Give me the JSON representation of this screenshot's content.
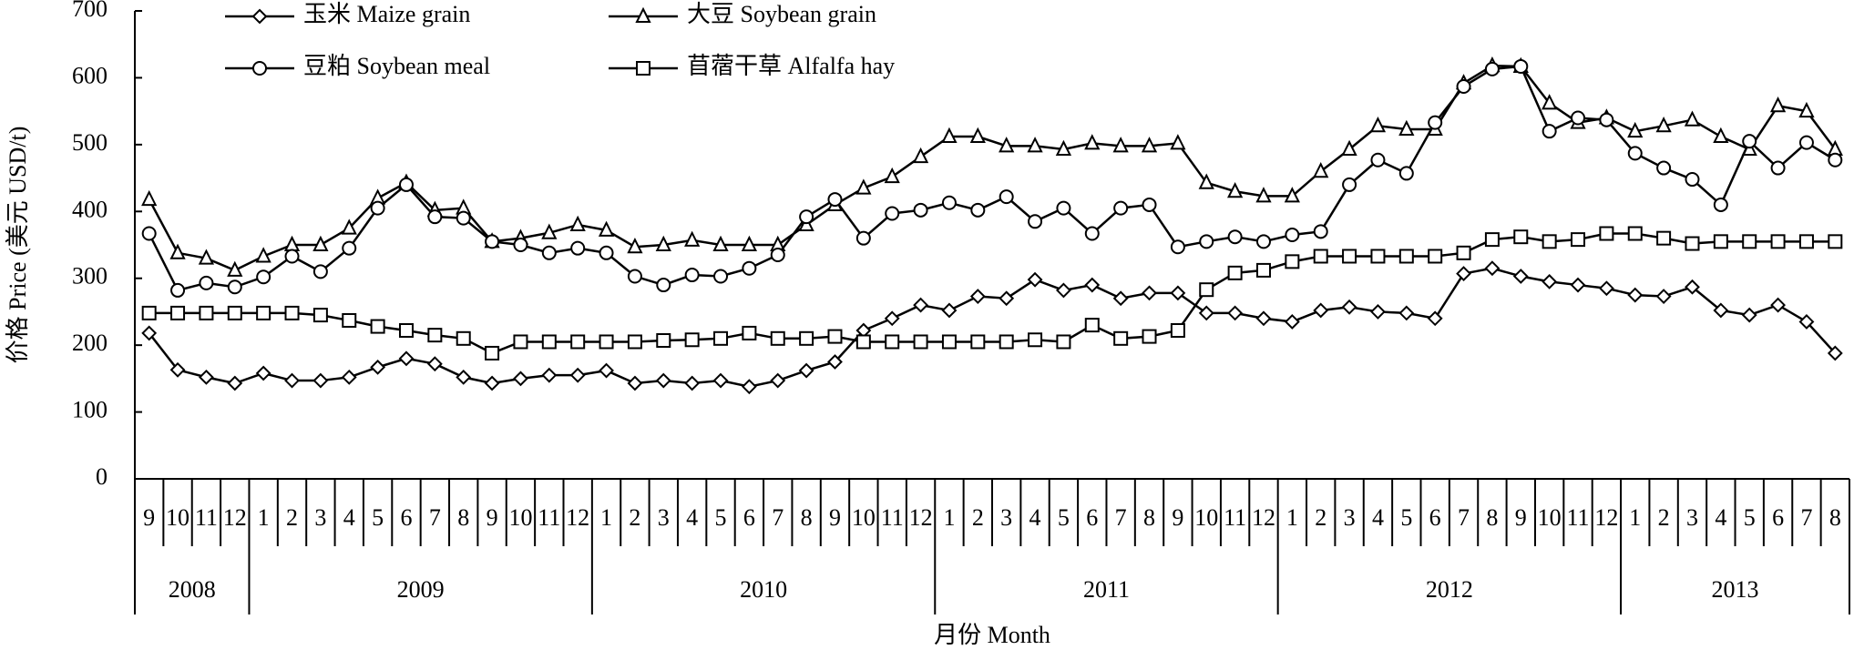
{
  "chart_data": {
    "type": "line",
    "y_label": "价格 Price (美元 USD/t)",
    "x_label": "月份 Month",
    "categories": [
      "9",
      "10",
      "11",
      "12",
      "1",
      "2",
      "3",
      "4",
      "5",
      "6",
      "7",
      "8",
      "9",
      "10",
      "11",
      "12",
      "1",
      "2",
      "3",
      "4",
      "5",
      "6",
      "7",
      "8",
      "9",
      "10",
      "11",
      "12",
      "1",
      "2",
      "3",
      "4",
      "5",
      "6",
      "7",
      "8",
      "9",
      "10",
      "11",
      "12",
      "1",
      "2",
      "3",
      "4",
      "5",
      "6",
      "7",
      "8",
      "9",
      "10",
      "11",
      "12",
      "1",
      "2",
      "3",
      "4",
      "5",
      "6",
      "7",
      "8"
    ],
    "years": [
      "2008",
      "2009",
      "2010",
      "2011",
      "2012",
      "2013"
    ],
    "ylim": [
      0,
      700
    ],
    "yticks": [
      0,
      100,
      200,
      300,
      400,
      500,
      600,
      700
    ],
    "legend": "upper left",
    "grid": false,
    "series": [
      {
        "name": "玉米 Maize grain",
        "color": "#000000",
        "marker": "diamond",
        "values": [
          218,
          163,
          152,
          143,
          158,
          147,
          147,
          152,
          167,
          180,
          172,
          152,
          143,
          150,
          155,
          155,
          162,
          143,
          147,
          143,
          147,
          138,
          147,
          162,
          175,
          222,
          240,
          260,
          252,
          273,
          270,
          298,
          282,
          290,
          270,
          278,
          278,
          248,
          248,
          240,
          235,
          252,
          257,
          250,
          248,
          240,
          307,
          315,
          303,
          295,
          290,
          285,
          275,
          273,
          287,
          252,
          245,
          260,
          235,
          188
        ]
      },
      {
        "name": "大豆 Soybean grain",
        "color": "#000000",
        "marker": "triangle",
        "values": [
          418,
          338,
          330,
          312,
          333,
          350,
          350,
          375,
          420,
          443,
          402,
          405,
          355,
          360,
          368,
          380,
          372,
          347,
          350,
          357,
          350,
          350,
          350,
          380,
          410,
          435,
          452,
          482,
          512,
          512,
          498,
          498,
          493,
          502,
          498,
          498,
          502,
          443,
          430,
          423,
          423,
          460,
          493,
          528,
          523,
          523,
          592,
          618,
          617,
          562,
          533,
          540,
          520,
          528,
          537,
          512,
          493,
          558,
          550,
          493
        ]
      },
      {
        "name": "豆粕 Soybean meal",
        "color": "#000000",
        "marker": "circle",
        "values": [
          367,
          282,
          293,
          287,
          302,
          333,
          310,
          345,
          405,
          440,
          392,
          390,
          355,
          350,
          338,
          345,
          338,
          303,
          290,
          305,
          303,
          315,
          335,
          392,
          418,
          360,
          397,
          402,
          413,
          402,
          422,
          385,
          405,
          367,
          405,
          410,
          347,
          355,
          362,
          355,
          365,
          370,
          440,
          477,
          457,
          533,
          587,
          613,
          617,
          520,
          540,
          537,
          487,
          465,
          448,
          410,
          505,
          465,
          503,
          477
        ]
      },
      {
        "name": "苜蓿干草 Alfalfa hay",
        "color": "#000000",
        "marker": "square",
        "values": [
          248,
          248,
          248,
          248,
          248,
          248,
          245,
          237,
          228,
          222,
          215,
          210,
          188,
          205,
          205,
          205,
          205,
          205,
          207,
          208,
          210,
          218,
          210,
          210,
          213,
          205,
          205,
          205,
          205,
          205,
          205,
          208,
          205,
          230,
          210,
          213,
          222,
          283,
          308,
          312,
          325,
          333,
          333,
          333,
          333,
          333,
          338,
          358,
          362,
          355,
          358,
          367,
          367,
          360,
          352,
          355,
          355,
          355,
          355,
          355
        ]
      }
    ]
  }
}
